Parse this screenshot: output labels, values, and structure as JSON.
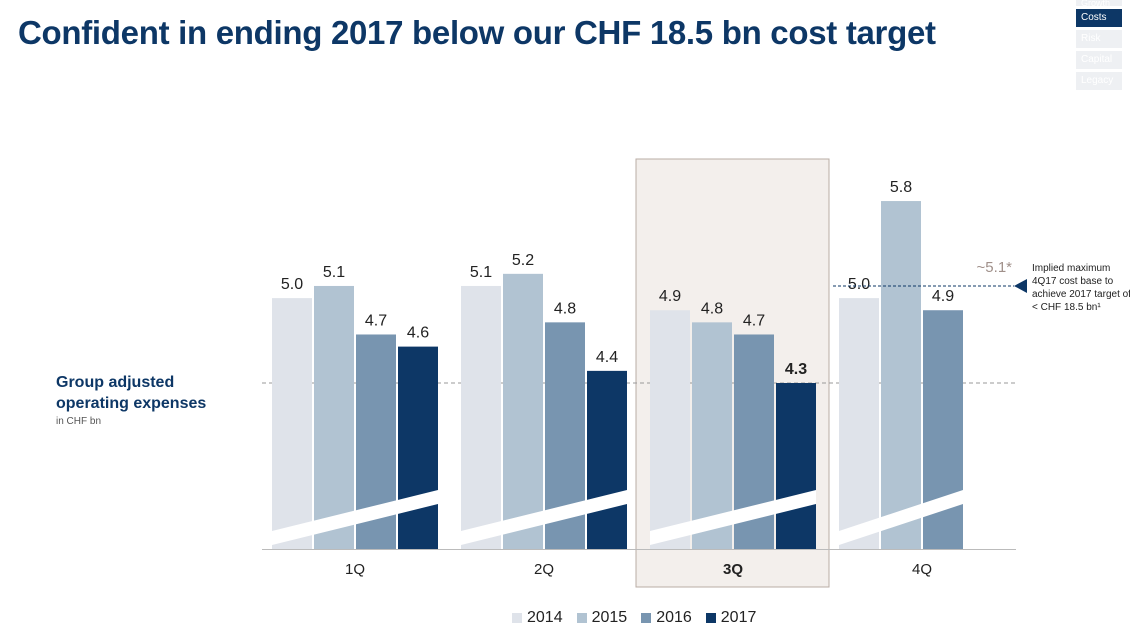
{
  "title": "Confident in ending 2017 below our CHF 18.5 bn cost target",
  "nav_tabs": [
    "Growth",
    "Costs",
    "Risk",
    "Capital",
    "Legacy"
  ],
  "active_tab": "Costs",
  "side_label": {
    "main": "Group adjusted operating expenses",
    "unit": "in CHF bn"
  },
  "annotation": {
    "value_label": "~5.1*",
    "text": "Implied maximum 4Q17 cost base to achieve 2017 target of < CHF 18.5 bn¹"
  },
  "chart_data": {
    "type": "bar",
    "categories": [
      "1Q",
      "2Q",
      "3Q",
      "4Q"
    ],
    "highlight_category": "3Q",
    "series": [
      {
        "name": "2014",
        "color": "#dfe3ea",
        "values": [
          5.0,
          5.1,
          4.9,
          5.0
        ]
      },
      {
        "name": "2015",
        "color": "#b1c3d2",
        "values": [
          5.1,
          5.2,
          4.8,
          5.8
        ]
      },
      {
        "name": "2016",
        "color": "#7895b0",
        "values": [
          4.7,
          4.8,
          4.7,
          4.9
        ]
      },
      {
        "name": "2017",
        "color": "#0d3766",
        "values": [
          4.6,
          4.4,
          4.3,
          null
        ]
      }
    ],
    "value_labels": [
      [
        "5.0",
        "5.1",
        "4.7",
        "4.6"
      ],
      [
        "5.1",
        "5.2",
        "4.8",
        "4.4"
      ],
      [
        "4.9",
        "4.8",
        "4.7",
        "4.3"
      ],
      [
        "5.0",
        "5.8",
        "4.9",
        ""
      ]
    ],
    "reference_lines": [
      {
        "value": 4.3,
        "style": "dashed",
        "color": "#999999"
      },
      {
        "value": 5.1,
        "style": "dashed",
        "color": "#0d3766",
        "category": "4Q",
        "label": "~5.1*"
      }
    ],
    "axis_break": true,
    "legend_position": "bottom"
  }
}
